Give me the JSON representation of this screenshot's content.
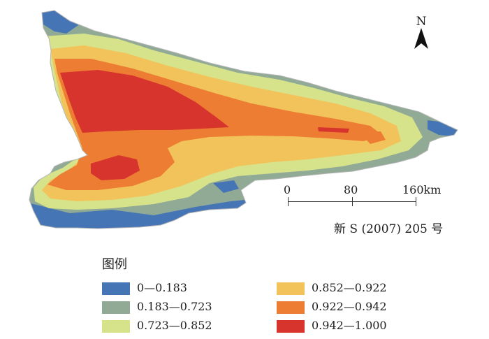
{
  "north_arrow": {
    "letter": "N",
    "icon": "north-arrow-icon"
  },
  "scale_bar": {
    "labels": [
      "0",
      "80",
      "160km"
    ]
  },
  "map_number": "新 S (2007) 205 号",
  "legend": {
    "title": "图例",
    "items": [
      {
        "label": "0—0.183",
        "color": "#4575b4"
      },
      {
        "label": "0.183—0.723",
        "color": "#91aa95"
      },
      {
        "label": "0.723—0.852",
        "color": "#d6e38a"
      },
      {
        "label": "0.852—0.922",
        "color": "#f2c35a"
      },
      {
        "label": "0.922—0.942",
        "color": "#ec7d33"
      },
      {
        "label": "0.942—1.000",
        "color": "#d7342e"
      }
    ]
  }
}
